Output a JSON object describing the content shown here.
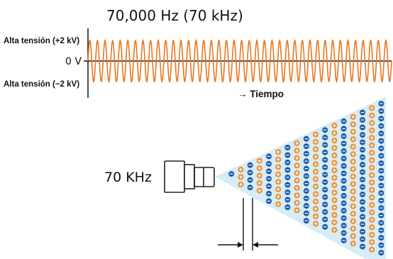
{
  "waveform": {
    "title": "70,000 Hz (70 kHz)",
    "label_high": "Alta tensión (+2 kV)",
    "label_zero": "0 V",
    "label_low": "Alta tensión (−2 kV)",
    "time_label": "→ Tiempo",
    "wave_color": "#E8761F"
  },
  "emitter": {
    "frequency_label": "70 KHz"
  },
  "ions": {
    "positive_color": "#F08A24",
    "negative_color": "#1E5AA8",
    "cone_color": "#D6ECF6"
  }
}
